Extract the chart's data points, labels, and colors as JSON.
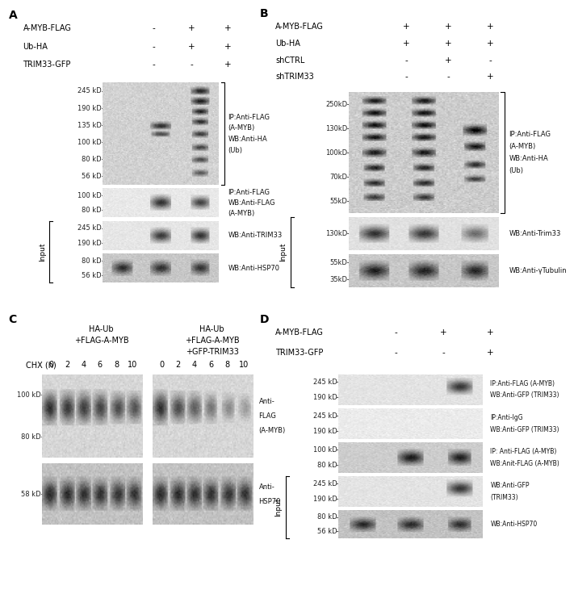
{
  "bg_color": "#ffffff",
  "font_size_panel": 10,
  "font_size_cond": 7,
  "font_size_kd": 6,
  "font_size_label": 6,
  "panel_A": {
    "conditions": [
      "A-MYB-FLAG",
      "Ub-HA",
      "TRIM33-GFP"
    ],
    "col_signs": [
      [
        "-",
        "+",
        "+"
      ],
      [
        "-",
        "+",
        "+"
      ],
      [
        "-",
        "-",
        "+"
      ]
    ],
    "blot1": {
      "kd_labels": [
        "245 kD",
        "190 kD",
        "135 kD",
        "100 kD",
        "80 kD",
        "56 kD"
      ],
      "right_labels": [
        "IP:Anti-FLAG",
        "(A-MYB)",
        "WB:Anti-HA",
        "(Ub)"
      ],
      "bracket": true,
      "bg": 0.82
    },
    "blot2": {
      "kd_labels": [
        "100 kD",
        "80 kD"
      ],
      "right_labels": [
        "IP:Anti-FLAG",
        "WB:Anti-FLAG",
        "(A-MYB)"
      ],
      "bracket": false,
      "bg": 0.91
    },
    "blot3": {
      "kd_labels": [
        "245 kD",
        "190 kD"
      ],
      "right_labels": [
        "WB:Anti-TRIM33"
      ],
      "bracket": false,
      "bg": 0.9
    },
    "blot4": {
      "kd_labels": [
        "80 kD",
        "56 kD"
      ],
      "right_labels": [
        "WB:Anti-HSP70"
      ],
      "bracket": false,
      "bg": 0.78
    }
  },
  "panel_B": {
    "conditions": [
      "A-MYB-FLAG",
      "Ub-HA",
      "shCTRL",
      "shTRIM33"
    ],
    "col_signs": [
      [
        "+",
        "+",
        "+"
      ],
      [
        "+",
        "+",
        "+"
      ],
      [
        "-",
        "+",
        "-"
      ],
      [
        "-",
        "-",
        "+"
      ]
    ],
    "blot1": {
      "kd_labels": [
        "250kD",
        "130kD",
        "100kD",
        "70kD",
        "55kD"
      ],
      "right_labels": [
        "IP:Anti-FLAG",
        "(A-MYB)",
        "WB:Anti-HA",
        "(Ub)"
      ],
      "bracket": true,
      "bg": 0.8
    },
    "blot2": {
      "kd_labels": [
        "130kD"
      ],
      "right_labels": [
        "WB:Anti-Trim33"
      ],
      "bracket": false,
      "bg": 0.88
    },
    "blot3": {
      "kd_labels": [
        "55kD",
        "35kD"
      ],
      "right_labels": [
        "WB:Anti-γTubulin"
      ],
      "bracket": false,
      "bg": 0.78
    }
  },
  "panel_C": {
    "group1_title": [
      "HA-Ub",
      "+FLAG-A-MYB"
    ],
    "group2_title": [
      "HA-Ub",
      "+FLAG-A-MYB",
      "+GFP-TRIM33"
    ],
    "timepoints": [
      "0",
      "2",
      "4",
      "6",
      "8",
      "10"
    ],
    "blot1": {
      "kd_labels": [
        "100 kD",
        "80 kD"
      ],
      "right_labels": [
        "Anti-",
        "FLAG",
        "(A-MYB)"
      ],
      "bg": 0.84
    },
    "blot2": {
      "kd_labels": [
        "58 kD"
      ],
      "right_labels": [
        "Anti-",
        "HSP70"
      ],
      "bg": 0.76
    }
  },
  "panel_D": {
    "conditions": [
      "A-MYB-FLAG",
      "TRIM33-GFP"
    ],
    "col_signs": [
      [
        "-",
        "+",
        "+"
      ],
      [
        "-",
        "-",
        "+"
      ]
    ],
    "blot1": {
      "kd_labels": [
        "245 kD",
        "190 kD"
      ],
      "right_labels": [
        "IP:Anti-FLAG (A-MYB)",
        "WB:Anti-GFP (TRIM33)"
      ],
      "bg": 0.89
    },
    "blot2": {
      "kd_labels": [
        "245 kD",
        "190 kD"
      ],
      "right_labels": [
        "IP:Anti-IgG",
        "WB:Anti-GFP (TRIM33)"
      ],
      "bg": 0.92
    },
    "blot3": {
      "kd_labels": [
        "100 kD",
        "80 kD"
      ],
      "right_labels": [
        "IP: Anti-FLAG (A-MYB)",
        "WB:Anit-FLAG (A-MYB)"
      ],
      "bg": 0.8
    },
    "blot4": {
      "kd_labels": [
        "245 kD",
        "190 kD"
      ],
      "right_labels": [
        "WB:Anti-GFP",
        "(TRIM33)"
      ],
      "bg": 0.89
    },
    "blot5": {
      "kd_labels": [
        "80 kD",
        "56 kD"
      ],
      "right_labels": [
        "WB:Anti-HSP70"
      ],
      "bg": 0.76
    }
  }
}
